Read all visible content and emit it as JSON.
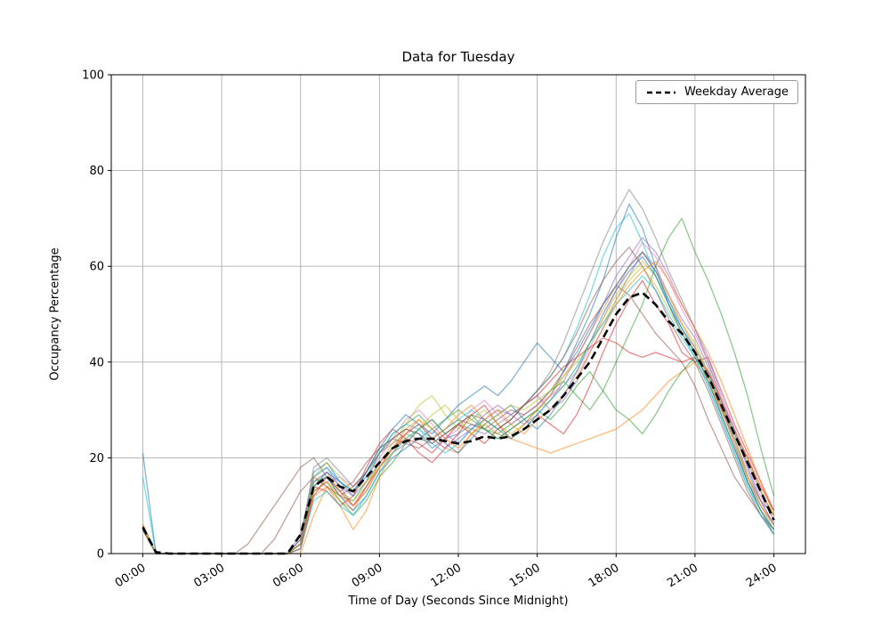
{
  "chart_data": {
    "type": "line",
    "title": "Data for Tuesday",
    "xlabel": "Time of Day (Seconds Since Midnight)",
    "ylabel": "Occupancy Percentage",
    "grid": true,
    "legend_position": "upper right",
    "xlim_hours": [
      -1.2,
      25.2
    ],
    "ylim": [
      0,
      100
    ],
    "x_start_hours": 0,
    "x_step_hours": 0.5,
    "x_ticks": {
      "hours": [
        0,
        3,
        6,
        9,
        12,
        15,
        18,
        21,
        24
      ],
      "labels": [
        "00:00",
        "03:00",
        "06:00",
        "09:00",
        "12:00",
        "15:00",
        "18:00",
        "21:00",
        "24:00"
      ]
    },
    "y_ticks": [
      0,
      20,
      40,
      60,
      80,
      100
    ],
    "average": {
      "name": "Weekday Average",
      "color": "#000000",
      "dashed": true,
      "values": [
        5.5,
        0.3,
        0,
        0,
        0,
        0,
        0,
        0,
        0,
        0,
        0,
        0,
        4,
        14,
        16,
        14,
        13,
        16,
        19,
        22,
        23.5,
        24,
        24,
        23.5,
        23,
        23.5,
        24.5,
        24,
        24.5,
        26,
        28,
        30,
        33,
        36.5,
        40,
        45,
        50,
        53.5,
        54.5,
        52,
        48.5,
        46,
        42,
        37,
        31,
        25,
        19,
        13,
        7
      ]
    },
    "series": [
      {
        "color": "#1f77b4",
        "values": [
          21,
          0,
          0,
          0,
          0,
          0,
          0,
          0,
          0,
          0,
          0,
          0,
          3,
          17,
          19,
          15,
          12,
          17,
          22,
          24,
          26,
          25,
          22,
          24,
          25,
          27,
          26,
          24,
          26,
          28,
          30,
          33,
          38,
          44,
          50,
          57,
          66,
          73,
          68,
          60,
          52,
          47,
          43,
          38,
          30,
          24,
          16,
          11,
          8
        ]
      },
      {
        "color": "#ff7f0e",
        "values": [
          6,
          0,
          0,
          0,
          0,
          0,
          0,
          0,
          0,
          0,
          0,
          0,
          1,
          12,
          14,
          11,
          9,
          14,
          19,
          22,
          26,
          28,
          24,
          22,
          21,
          25,
          27,
          25,
          24,
          23,
          22,
          21,
          22,
          23,
          24,
          25,
          26,
          28,
          30,
          33,
          36,
          38,
          40,
          36,
          30,
          25,
          20,
          13,
          7
        ]
      },
      {
        "color": "#2ca02c",
        "values": [
          5,
          0,
          0,
          0,
          0,
          0,
          0,
          0,
          0,
          0,
          0,
          0,
          2,
          15,
          16,
          12,
          11,
          15,
          21,
          25,
          27,
          29,
          26,
          28,
          30,
          28,
          26,
          25,
          27,
          29,
          31,
          34,
          36,
          33,
          30,
          34,
          40,
          46,
          52,
          60,
          66,
          70,
          63,
          57,
          50,
          42,
          33,
          22,
          12
        ]
      },
      {
        "color": "#d62728",
        "values": [
          6,
          0,
          0,
          0,
          0,
          0,
          0,
          0,
          0,
          0,
          0,
          0,
          2,
          14,
          13,
          10,
          12,
          18,
          23,
          26,
          24,
          21,
          19,
          22,
          25,
          29,
          31,
          27,
          24,
          26,
          29,
          27,
          25,
          29,
          35,
          42,
          48,
          53,
          57,
          52,
          48,
          42,
          40,
          41,
          34,
          27,
          21,
          15,
          9
        ]
      },
      {
        "color": "#9467bd",
        "values": [
          5,
          0,
          0,
          0,
          0,
          0,
          0,
          0,
          0,
          0,
          0,
          0,
          4,
          16,
          18,
          14,
          10,
          13,
          18,
          21,
          23,
          26,
          28,
          25,
          23,
          26,
          28,
          30,
          29,
          31,
          33,
          30,
          32,
          36,
          42,
          47,
          53,
          58,
          63,
          60,
          54,
          49,
          45,
          39,
          31,
          23,
          15,
          10,
          6
        ]
      },
      {
        "color": "#8c564b",
        "values": [
          5,
          0,
          0,
          0,
          0,
          0,
          0,
          0,
          2,
          6,
          10,
          14,
          18,
          20,
          16,
          13,
          15,
          19,
          22,
          24,
          23,
          22,
          24,
          26,
          28,
          27,
          26,
          28,
          30,
          29,
          31,
          34,
          38,
          43,
          48,
          52,
          56,
          54,
          50,
          46,
          43,
          40,
          35,
          28,
          22,
          16,
          12,
          8,
          5
        ]
      },
      {
        "color": "#e377c2",
        "values": [
          6,
          0,
          0,
          0,
          0,
          0,
          0,
          0,
          0,
          0,
          0,
          0,
          1,
          13,
          15,
          16,
          14,
          16,
          20,
          24,
          28,
          30,
          27,
          24,
          26,
          30,
          32,
          29,
          27,
          29,
          31,
          33,
          35,
          38,
          43,
          49,
          55,
          60,
          65,
          62,
          57,
          51,
          46,
          40,
          32,
          25,
          18,
          12,
          7
        ]
      },
      {
        "color": "#7f7f7f",
        "values": [
          5,
          0,
          0,
          0,
          0,
          0,
          0,
          0,
          0,
          0,
          0,
          0,
          3,
          18,
          20,
          17,
          14,
          17,
          21,
          23,
          25,
          24,
          23,
          25,
          27,
          26,
          25,
          27,
          29,
          31,
          34,
          38,
          44,
          51,
          58,
          65,
          71,
          76,
          72,
          66,
          59,
          53,
          47,
          40,
          32,
          24,
          17,
          11,
          6
        ]
      },
      {
        "color": "#bcbd22",
        "values": [
          6,
          0,
          0,
          0,
          0,
          0,
          0,
          0,
          0,
          0,
          0,
          0,
          2,
          15,
          17,
          13,
          11,
          14,
          19,
          23,
          27,
          31,
          33,
          29,
          26,
          28,
          30,
          27,
          25,
          27,
          30,
          32,
          35,
          39,
          44,
          49,
          54,
          58,
          61,
          58,
          53,
          48,
          44,
          38,
          31,
          24,
          16,
          10,
          5
        ]
      },
      {
        "color": "#17becf",
        "values": [
          16,
          0,
          0,
          0,
          0,
          0,
          0,
          0,
          0,
          0,
          0,
          0,
          2,
          16,
          18,
          15,
          13,
          16,
          21,
          25,
          27,
          26,
          24,
          26,
          28,
          30,
          28,
          26,
          28,
          31,
          34,
          37,
          41,
          47,
          54,
          62,
          68,
          71,
          65,
          58,
          52,
          46,
          41,
          35,
          28,
          21,
          14,
          9,
          5
        ]
      },
      {
        "color": "#1f77b4",
        "values": [
          5,
          0,
          0,
          0,
          0,
          0,
          0,
          0,
          0,
          0,
          0,
          0,
          2,
          14,
          16,
          12,
          9,
          12,
          17,
          20,
          22,
          24,
          26,
          23,
          21,
          24,
          27,
          29,
          31,
          28,
          26,
          29,
          33,
          38,
          44,
          50,
          55,
          59,
          62,
          58,
          52,
          46,
          42,
          36,
          29,
          22,
          15,
          9,
          4
        ]
      },
      {
        "color": "#ff7f0e",
        "values": [
          5,
          0,
          0,
          0,
          0,
          0,
          0,
          0,
          0,
          0,
          0,
          0,
          0,
          8,
          14,
          10,
          5,
          9,
          16,
          21,
          25,
          27,
          24,
          26,
          29,
          31,
          28,
          26,
          24,
          27,
          30,
          33,
          37,
          41,
          46,
          51,
          56,
          60,
          63,
          59,
          54,
          48,
          43,
          37,
          30,
          23,
          16,
          10,
          6
        ]
      },
      {
        "color": "#2ca02c",
        "values": [
          5,
          0,
          0,
          0,
          0,
          0,
          0,
          0,
          0,
          0,
          0,
          0,
          2,
          13,
          15,
          11,
          8,
          11,
          16,
          19,
          23,
          26,
          28,
          25,
          27,
          29,
          26,
          24,
          26,
          28,
          30,
          28,
          31,
          35,
          38,
          34,
          30,
          28,
          25,
          29,
          34,
          38,
          41,
          37,
          31,
          25,
          19,
          13,
          8
        ]
      },
      {
        "color": "#d62728",
        "values": [
          6,
          0,
          0,
          0,
          0,
          0,
          0,
          0,
          0,
          0,
          0,
          0,
          1,
          12,
          16,
          13,
          10,
          14,
          18,
          22,
          24,
          23,
          21,
          24,
          27,
          25,
          23,
          26,
          28,
          31,
          33,
          36,
          39,
          41,
          43,
          45,
          44,
          42,
          41,
          42,
          41,
          40,
          41,
          38,
          32,
          26,
          20,
          14,
          9
        ]
      },
      {
        "color": "#9467bd",
        "values": [
          5,
          0,
          0,
          0,
          0,
          0,
          0,
          0,
          0,
          0,
          0,
          0,
          3,
          15,
          17,
          14,
          12,
          15,
          19,
          22,
          25,
          27,
          24,
          22,
          24,
          26,
          29,
          31,
          29,
          27,
          29,
          32,
          36,
          41,
          46,
          52,
          58,
          62,
          66,
          63,
          58,
          52,
          47,
          41,
          33,
          26,
          18,
          11,
          6
        ]
      },
      {
        "color": "#8c564b",
        "values": [
          5,
          0,
          0,
          0,
          0,
          0,
          0,
          0,
          0,
          0,
          3,
          8,
          13,
          16,
          14,
          12,
          14,
          17,
          21,
          24,
          26,
          25,
          23,
          25,
          27,
          29,
          28,
          26,
          28,
          31,
          34,
          37,
          41,
          46,
          52,
          57,
          61,
          64,
          60,
          55,
          49,
          44,
          40,
          34,
          27,
          20,
          13,
          8,
          4
        ]
      },
      {
        "color": "#bcbd22",
        "values": [
          6,
          0,
          0,
          0,
          0,
          0,
          0,
          0,
          0,
          0,
          0,
          0,
          2,
          16,
          19,
          16,
          13,
          15,
          18,
          21,
          24,
          26,
          29,
          31,
          28,
          25,
          27,
          29,
          31,
          30,
          32,
          34,
          37,
          40,
          44,
          48,
          53,
          57,
          60,
          56,
          51,
          46,
          42,
          36,
          29,
          22,
          15,
          9,
          5
        ]
      },
      {
        "color": "#17becf",
        "values": [
          5,
          0,
          0,
          0,
          0,
          0,
          0,
          0,
          0,
          0,
          0,
          0,
          1,
          11,
          13,
          10,
          8,
          12,
          17,
          21,
          24,
          26,
          23,
          21,
          23,
          26,
          28,
          26,
          24,
          26,
          29,
          32,
          35,
          39,
          44,
          48,
          52,
          55,
          58,
          55,
          50,
          45,
          41,
          35,
          28,
          21,
          14,
          8,
          4
        ]
      },
      {
        "color": "#1f77b4",
        "values": [
          5,
          0,
          0,
          0,
          0,
          0,
          0,
          0,
          0,
          0,
          0,
          0,
          2,
          14,
          17,
          15,
          13,
          17,
          22,
          26,
          29,
          27,
          25,
          28,
          31,
          33,
          35,
          33,
          36,
          40,
          44,
          41,
          38,
          42,
          47,
          52,
          56,
          60,
          63,
          59,
          53,
          47,
          42,
          36,
          29,
          22,
          15,
          9,
          5
        ]
      },
      {
        "color": "#ff7f0e",
        "values": [
          5,
          0,
          0,
          0,
          0,
          0,
          0,
          0,
          0,
          0,
          0,
          0,
          2,
          13,
          15,
          12,
          10,
          13,
          18,
          22,
          25,
          28,
          26,
          24,
          22,
          25,
          28,
          30,
          27,
          25,
          28,
          30,
          33,
          37,
          42,
          47,
          52,
          56,
          59,
          61,
          57,
          52,
          47,
          42,
          36,
          29,
          22,
          15,
          8
        ]
      }
    ]
  }
}
